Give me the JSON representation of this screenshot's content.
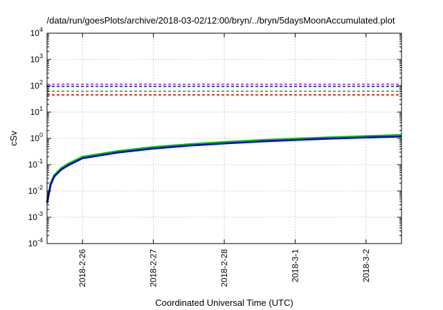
{
  "chart_data": {
    "type": "line",
    "title": "/data/run/goesPlots/archive/2018-03-02/12:00/bryn/../bryn/5daysMoonAccumulated.plot",
    "xlabel": "Coordinated Universal Time (UTC)",
    "ylabel": "cSv",
    "yscale": "log",
    "ylim": [
      0.0001,
      10000
    ],
    "y_ticks": [
      {
        "base": "10",
        "exp": "-4",
        "value": 0.0001
      },
      {
        "base": "10",
        "exp": "-3",
        "value": 0.001
      },
      {
        "base": "10",
        "exp": "-2",
        "value": 0.01
      },
      {
        "base": "10",
        "exp": "-1",
        "value": 0.1
      },
      {
        "base": "10",
        "exp": "0",
        "value": 1
      },
      {
        "base": "10",
        "exp": "1",
        "value": 10
      },
      {
        "base": "10",
        "exp": "2",
        "value": 100
      },
      {
        "base": "10",
        "exp": "3",
        "value": 1000
      },
      {
        "base": "10",
        "exp": "4",
        "value": 10000
      }
    ],
    "xlim": [
      "2018-02-25 12:00",
      "2018-03-02 12:00"
    ],
    "x_ticks": [
      {
        "label": "2018-2-26",
        "value": "2018-02-26 00:00"
      },
      {
        "label": "2018-2-27",
        "value": "2018-02-27 00:00"
      },
      {
        "label": "2018-2-28",
        "value": "2018-02-28 00:00"
      },
      {
        "label": "2018-3-1",
        "value": "2018-03-01 00:00"
      },
      {
        "label": "2018-3-2",
        "value": "2018-03-02 00:00"
      }
    ],
    "grid": true,
    "thresholds": [
      {
        "color": "#9b30d9",
        "value": 115
      },
      {
        "color": "#2020c0",
        "value": 95
      },
      {
        "color": "#00c000",
        "value": 62
      },
      {
        "color": "#e00000",
        "value": 45
      }
    ],
    "series": [
      {
        "color": "#00c000",
        "x": [
          "2018-02-25 12:00",
          "2018-02-25 13:12",
          "2018-02-25 14:24",
          "2018-02-25 16:48",
          "2018-02-25 19:12",
          "2018-02-26 00:00",
          "2018-02-26 12:00",
          "2018-02-27 00:00",
          "2018-02-27 12:00",
          "2018-02-28 00:00",
          "2018-02-28 12:00",
          "2018-03-01 00:00",
          "2018-03-01 12:00",
          "2018-03-02 00:00",
          "2018-03-02 12:00"
        ],
        "values": [
          0.004,
          0.02,
          0.04,
          0.075,
          0.11,
          0.2,
          0.33,
          0.47,
          0.6,
          0.73,
          0.86,
          0.98,
          1.1,
          1.22,
          1.35
        ]
      },
      {
        "color": "#0000e0",
        "x": [
          "2018-02-25 12:00",
          "2018-02-25 13:12",
          "2018-02-25 14:24",
          "2018-02-25 16:48",
          "2018-02-25 19:12",
          "2018-02-26 00:00",
          "2018-02-26 12:00",
          "2018-02-27 00:00",
          "2018-02-27 12:00",
          "2018-02-28 00:00",
          "2018-02-28 12:00",
          "2018-03-01 00:00",
          "2018-03-01 12:00",
          "2018-03-02 00:00",
          "2018-03-02 12:00"
        ],
        "values": [
          0.0035,
          0.017,
          0.035,
          0.065,
          0.095,
          0.175,
          0.29,
          0.41,
          0.53,
          0.64,
          0.76,
          0.87,
          0.98,
          1.08,
          1.18
        ]
      }
    ]
  }
}
